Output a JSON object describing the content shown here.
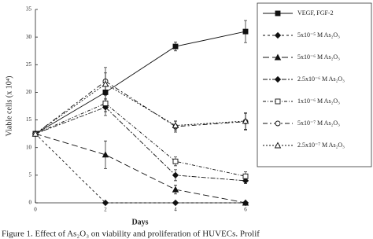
{
  "chart_data": {
    "type": "line",
    "x_label": "Days",
    "y_label": "Viable cells (x 10⁴)",
    "caption": "Figure 1. Effect of As₂O₃ on viability and proliferation of HUVECs. Prolif",
    "x": [
      0,
      2,
      4,
      6
    ],
    "xlim": [
      0,
      6
    ],
    "xticks": [
      0,
      2,
      4,
      6
    ],
    "ylim": [
      0,
      35
    ],
    "yticks": [
      0,
      5,
      10,
      15,
      20,
      25,
      30,
      35
    ],
    "series": [
      {
        "name": "VEGF, FGF-2",
        "color": "#111111",
        "marker": "square",
        "filled": true,
        "dash": "none",
        "values": [
          12.5,
          20,
          28.3,
          31
        ],
        "errors": [
          0,
          1.2,
          0.8,
          2
        ]
      },
      {
        "name": "5x10⁻⁵ M As₂O₃",
        "color": "#111111",
        "marker": "diamond",
        "filled": true,
        "dash": "3,3",
        "values": [
          12.5,
          0,
          0,
          0
        ],
        "errors": [
          0,
          0,
          0,
          0
        ]
      },
      {
        "name": "5x10⁻⁶ M As₂O₃",
        "color": "#111111",
        "marker": "triangle",
        "filled": true,
        "dash": "8,4",
        "values": [
          12.5,
          8.7,
          2.4,
          0
        ],
        "errors": [
          0,
          2.5,
          0.8,
          0
        ]
      },
      {
        "name": "2.5x10⁻⁶ M As₂O₃",
        "color": "#111111",
        "marker": "diamond",
        "filled": true,
        "dash": "6,2,2,2",
        "values": [
          12.5,
          17.3,
          5,
          4
        ],
        "errors": [
          0,
          1.5,
          1,
          0.5
        ]
      },
      {
        "name": "1x10⁻⁶ M As₂O₃",
        "color": "#111111",
        "marker": "square",
        "filled": false,
        "dash": "4,2,1,2",
        "values": [
          12.5,
          18,
          7.5,
          4.8
        ],
        "errors": [
          0,
          1.5,
          0.8,
          0.8
        ]
      },
      {
        "name": "5x10⁻⁷ M As₂O₃",
        "color": "#111111",
        "marker": "circle",
        "filled": false,
        "dash": "6,3,2,3",
        "values": [
          12.5,
          22,
          13.8,
          14.7
        ],
        "errors": [
          0,
          2.5,
          1,
          1.5
        ]
      },
      {
        "name": "2.5x10⁻⁷ M As₂O₃",
        "color": "#111111",
        "marker": "triangle",
        "filled": false,
        "dash": "2,2",
        "values": [
          12.5,
          21.5,
          14,
          14.8
        ],
        "errors": [
          0,
          2,
          0.8,
          1.5
        ]
      }
    ]
  }
}
